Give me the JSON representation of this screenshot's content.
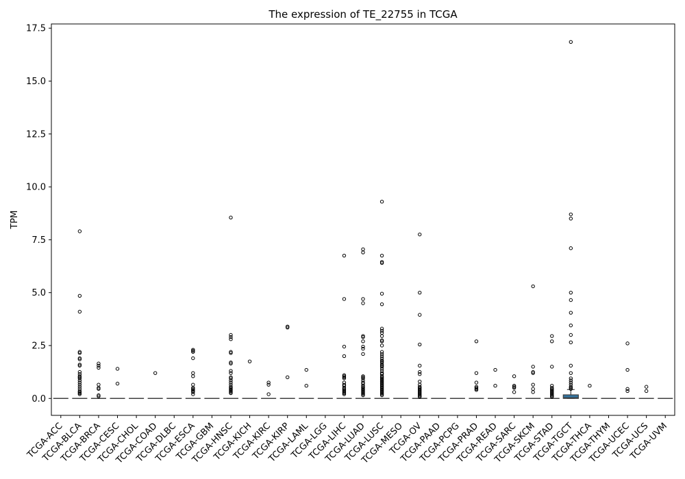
{
  "chart_data": {
    "type": "box",
    "title": "The expression of TE_22755 in TCGA",
    "xlabel": "",
    "ylabel": "TPM",
    "ylim": [
      -0.8,
      17.7
    ],
    "yticks": [
      0.0,
      2.5,
      5.0,
      7.5,
      10.0,
      12.5,
      15.0,
      17.5
    ],
    "ytick_labels": [
      "0.0",
      "2.5",
      "5.0",
      "7.5",
      "10.0",
      "12.5",
      "15.0",
      "17.5"
    ],
    "grid": false,
    "box_color": "#3274a1",
    "categories": [
      "TCGA-ACC",
      "TCGA-BLCA",
      "TCGA-BRCA",
      "TCGA-CESC",
      "TCGA-CHOL",
      "TCGA-COAD",
      "TCGA-DLBC",
      "TCGA-ESCA",
      "TCGA-GBM",
      "TCGA-HNSC",
      "TCGA-KICH",
      "TCGA-KIRC",
      "TCGA-KIRP",
      "TCGA-LAML",
      "TCGA-LGG",
      "TCGA-LIHC",
      "TCGA-LUAD",
      "TCGA-LUSC",
      "TCGA-MESO",
      "TCGA-OV",
      "TCGA-PAAD",
      "TCGA-PCPG",
      "TCGA-PRAD",
      "TCGA-READ",
      "TCGA-SARC",
      "TCGA-SKCM",
      "TCGA-STAD",
      "TCGA-TGCT",
      "TCGA-THCA",
      "TCGA-THYM",
      "TCGA-UCEC",
      "TCGA-UCS",
      "TCGA-UVM"
    ],
    "boxes": [
      {
        "q1": 0,
        "median": 0,
        "q3": 0,
        "whisker_low": 0,
        "whisker_high": 0
      },
      {
        "q1": 0,
        "median": 0,
        "q3": 0,
        "whisker_low": 0,
        "whisker_high": 0
      },
      {
        "q1": 0,
        "median": 0,
        "q3": 0,
        "whisker_low": 0,
        "whisker_high": 0
      },
      {
        "q1": 0,
        "median": 0,
        "q3": 0,
        "whisker_low": 0,
        "whisker_high": 0
      },
      {
        "q1": 0,
        "median": 0,
        "q3": 0,
        "whisker_low": 0,
        "whisker_high": 0
      },
      {
        "q1": 0,
        "median": 0,
        "q3": 0,
        "whisker_low": 0,
        "whisker_high": 0
      },
      {
        "q1": 0,
        "median": 0,
        "q3": 0,
        "whisker_low": 0,
        "whisker_high": 0
      },
      {
        "q1": 0,
        "median": 0,
        "q3": 0,
        "whisker_low": 0,
        "whisker_high": 0
      },
      {
        "q1": 0,
        "median": 0,
        "q3": 0,
        "whisker_low": 0,
        "whisker_high": 0
      },
      {
        "q1": 0,
        "median": 0,
        "q3": 0,
        "whisker_low": 0,
        "whisker_high": 0
      },
      {
        "q1": 0,
        "median": 0,
        "q3": 0,
        "whisker_low": 0,
        "whisker_high": 0
      },
      {
        "q1": 0,
        "median": 0,
        "q3": 0,
        "whisker_low": 0,
        "whisker_high": 0
      },
      {
        "q1": 0,
        "median": 0,
        "q3": 0,
        "whisker_low": 0,
        "whisker_high": 0
      },
      {
        "q1": 0,
        "median": 0,
        "q3": 0,
        "whisker_low": 0,
        "whisker_high": 0
      },
      {
        "q1": 0,
        "median": 0,
        "q3": 0,
        "whisker_low": 0,
        "whisker_high": 0
      },
      {
        "q1": 0,
        "median": 0,
        "q3": 0,
        "whisker_low": 0,
        "whisker_high": 0
      },
      {
        "q1": 0,
        "median": 0,
        "q3": 0,
        "whisker_low": 0,
        "whisker_high": 0
      },
      {
        "q1": 0,
        "median": 0,
        "q3": 0,
        "whisker_low": 0,
        "whisker_high": 0
      },
      {
        "q1": 0,
        "median": 0,
        "q3": 0,
        "whisker_low": 0,
        "whisker_high": 0
      },
      {
        "q1": 0,
        "median": 0,
        "q3": 0,
        "whisker_low": 0,
        "whisker_high": 0
      },
      {
        "q1": 0,
        "median": 0,
        "q3": 0,
        "whisker_low": 0,
        "whisker_high": 0
      },
      {
        "q1": 0,
        "median": 0,
        "q3": 0,
        "whisker_low": 0,
        "whisker_high": 0
      },
      {
        "q1": 0,
        "median": 0,
        "q3": 0,
        "whisker_low": 0,
        "whisker_high": 0
      },
      {
        "q1": 0,
        "median": 0,
        "q3": 0,
        "whisker_low": 0,
        "whisker_high": 0
      },
      {
        "q1": 0,
        "median": 0,
        "q3": 0,
        "whisker_low": 0,
        "whisker_high": 0
      },
      {
        "q1": 0,
        "median": 0,
        "q3": 0,
        "whisker_low": 0,
        "whisker_high": 0
      },
      {
        "q1": 0,
        "median": 0,
        "q3": 0,
        "whisker_low": 0,
        "whisker_high": 0
      },
      {
        "q1": 0,
        "median": 0.03,
        "q3": 0.17,
        "whisker_low": 0,
        "whisker_high": 0.42
      },
      {
        "q1": 0,
        "median": 0,
        "q3": 0,
        "whisker_low": 0,
        "whisker_high": 0
      },
      {
        "q1": 0,
        "median": 0,
        "q3": 0,
        "whisker_low": 0,
        "whisker_high": 0
      },
      {
        "q1": 0,
        "median": 0,
        "q3": 0,
        "whisker_low": 0,
        "whisker_high": 0
      },
      {
        "q1": 0,
        "median": 0,
        "q3": 0,
        "whisker_low": 0,
        "whisker_high": 0
      },
      {
        "q1": 0,
        "median": 0,
        "q3": 0,
        "whisker_low": 0,
        "whisker_high": 0
      }
    ],
    "outliers": [
      [],
      [
        7.9,
        4.85,
        4.1,
        2.2,
        2.15,
        1.9,
        1.85,
        1.6,
        1.55,
        1.25,
        1.15,
        1.05,
        1.0,
        0.95,
        0.85,
        0.75,
        0.65,
        0.55,
        0.45,
        0.35,
        0.3,
        0.25,
        0.2
      ],
      [
        1.65,
        1.55,
        1.45,
        0.65,
        0.5,
        0.45,
        0.15,
        0.1
      ],
      [
        1.4,
        0.7
      ],
      [],
      [
        1.2
      ],
      [],
      [
        2.3,
        2.25,
        2.2,
        1.9,
        1.2,
        1.05,
        0.65,
        0.5,
        0.45,
        0.4,
        0.35,
        0.3,
        0.2
      ],
      [],
      [
        8.55,
        3.0,
        2.9,
        2.8,
        2.2,
        2.15,
        1.7,
        1.65,
        1.3,
        1.2,
        1.0,
        0.95,
        0.85,
        0.75,
        0.65,
        0.55,
        0.5,
        0.45,
        0.4,
        0.35,
        0.3,
        0.25
      ],
      [
        1.75
      ],
      [
        0.75,
        0.65,
        0.2
      ],
      [
        3.4,
        3.35,
        1.0
      ],
      [
        1.35,
        0.6
      ],
      [],
      [
        6.75,
        4.7,
        2.45,
        2.0,
        1.1,
        1.05,
        1.0,
        0.95,
        0.75,
        0.65,
        0.6,
        0.5,
        0.45,
        0.4,
        0.35,
        0.3,
        0.25,
        0.2
      ],
      [
        7.05,
        6.9,
        4.7,
        4.5,
        2.95,
        2.9,
        2.7,
        2.45,
        2.35,
        2.1,
        1.05,
        1.0,
        0.95,
        0.85,
        0.75,
        0.7,
        0.6,
        0.55,
        0.5,
        0.45,
        0.4,
        0.35,
        0.3,
        0.25,
        0.2,
        0.15
      ],
      [
        9.3,
        6.75,
        6.45,
        6.4,
        4.95,
        4.45,
        3.3,
        3.2,
        3.1,
        2.95,
        2.75,
        2.7,
        2.5,
        2.2,
        2.1,
        2.0,
        1.9,
        1.8,
        1.75,
        1.7,
        1.6,
        1.55,
        1.5,
        1.4,
        1.3,
        1.2,
        1.15,
        1.05,
        1.0,
        0.95,
        0.9,
        0.85,
        0.8,
        0.75,
        0.7,
        0.65,
        0.6,
        0.55,
        0.5,
        0.45,
        0.4,
        0.35,
        0.3,
        0.25,
        0.2,
        0.15
      ],
      [],
      [
        7.75,
        5.0,
        3.95,
        2.55,
        1.55,
        1.25,
        1.15,
        0.8,
        0.65,
        0.55,
        0.5,
        0.45,
        0.4,
        0.35,
        0.3,
        0.25,
        0.2,
        0.15,
        0.1,
        0.08
      ],
      [],
      [],
      [
        2.7,
        1.2,
        0.75,
        0.55,
        0.5,
        0.45,
        0.4
      ],
      [
        1.35,
        0.6
      ],
      [
        1.05,
        0.6,
        0.55,
        0.5,
        0.3
      ],
      [
        5.3,
        1.5,
        1.25,
        1.2,
        0.65,
        0.45,
        0.3
      ],
      [
        2.95,
        2.7,
        1.5,
        0.6,
        0.5,
        0.45,
        0.4,
        0.35,
        0.3,
        0.25,
        0.2,
        0.15,
        0.1,
        0.08
      ],
      [
        16.85,
        8.7,
        8.5,
        7.1,
        5.0,
        4.65,
        4.05,
        3.45,
        3.0,
        2.65,
        1.55,
        1.2,
        0.95,
        0.85,
        0.75,
        0.65,
        0.55,
        0.5,
        0.45
      ],
      [
        0.6
      ],
      [],
      [
        2.6,
        1.35,
        0.45,
        0.35
      ],
      [
        0.55,
        0.35
      ],
      []
    ]
  }
}
